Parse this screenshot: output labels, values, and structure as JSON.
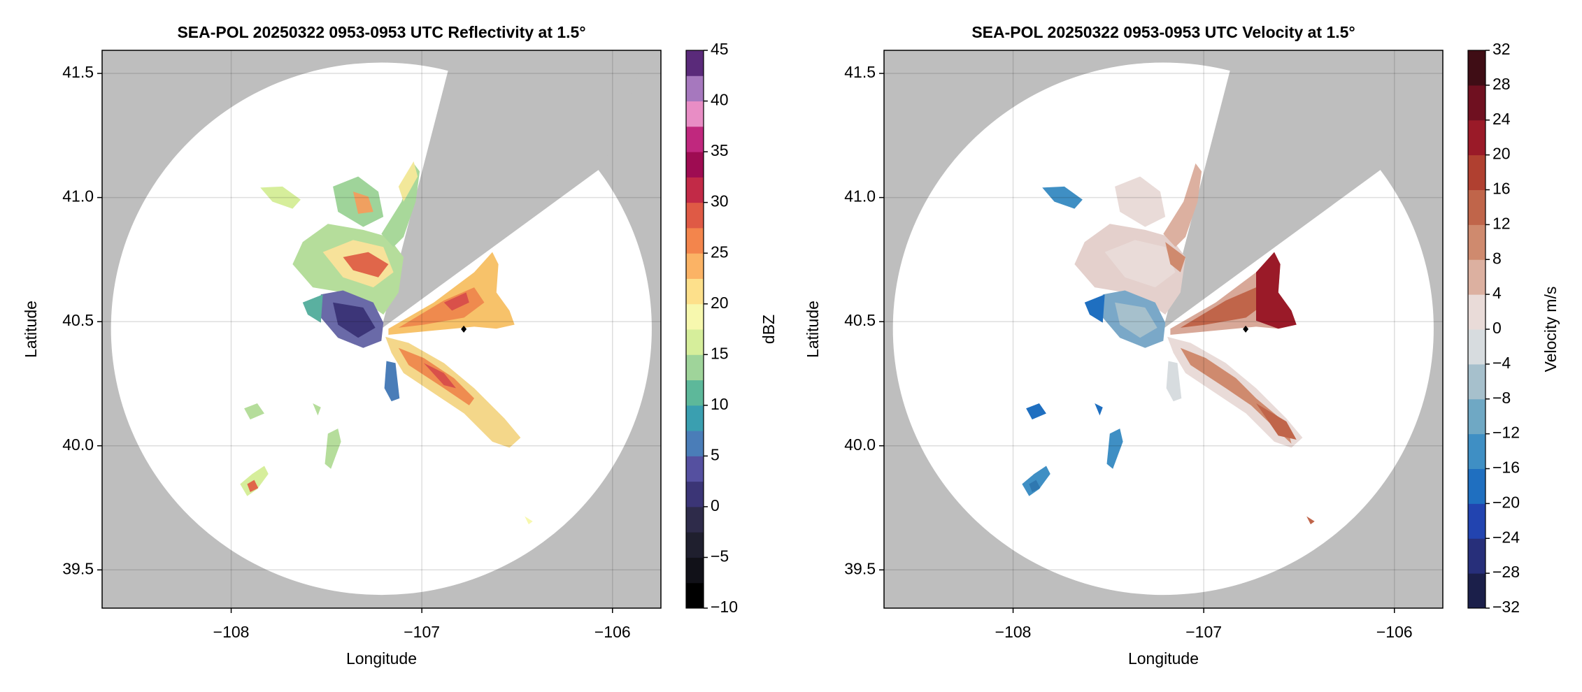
{
  "chart_data": [
    {
      "type": "radar-ppi",
      "title": "SEA-POL 20250322 0953-0953 UTC Reflectivity at 1.5°",
      "xlabel": "Longitude",
      "ylabel": "Latitude",
      "xlim": [
        -108.677,
        -105.746
      ],
      "ylim": [
        39.346,
        41.593
      ],
      "xticks": [
        {
          "value": -108,
          "label": "−108"
        },
        {
          "value": -107,
          "label": "−107"
        },
        {
          "value": -106,
          "label": "−106"
        }
      ],
      "yticks": [
        39.5,
        {
          "value": 40.0,
          "label": "40.0"
        },
        40.5,
        {
          "value": 41.0,
          "label": "41.0"
        },
        41.5
      ],
      "grid": true,
      "site": {
        "x": -106.78,
        "y": 40.47,
        "color": "#000000"
      },
      "colorbar": {
        "label": "dBZ",
        "lim": [
          -10,
          45
        ],
        "ticks": [
          {
            "value": -10,
            "label": "−10"
          },
          {
            "value": -5,
            "label": "−5"
          },
          0,
          5,
          10,
          15,
          20,
          25,
          30,
          35,
          40,
          45
        ],
        "colors": [
          "#000000",
          "#111118",
          "#1f1f2e",
          "#2e2b4a",
          "#3b3576",
          "#5550a0",
          "#4a7db8",
          "#3a9fb0",
          "#5db89a",
          "#9fd49a",
          "#d6ee9b",
          "#f7f8ae",
          "#fde08b",
          "#fbb365",
          "#f3854c",
          "#df5a45",
          "#c22a47",
          "#9e0c52",
          "#c0287e",
          "#e88dc5",
          "#a678be",
          "#5a2a7a"
        ]
      }
    },
    {
      "type": "radar-ppi",
      "title": "SEA-POL 20250322 0953-0953 UTC Velocity at 1.5°",
      "xlabel": "Longitude",
      "ylabel": "Latitude",
      "xlim": [
        -108.677,
        -105.746
      ],
      "ylim": [
        39.346,
        41.593
      ],
      "xticks": [
        {
          "value": -108,
          "label": "−108"
        },
        {
          "value": -107,
          "label": "−107"
        },
        {
          "value": -106,
          "label": "−106"
        }
      ],
      "yticks": [
        39.5,
        {
          "value": 40.0,
          "label": "40.0"
        },
        40.5,
        {
          "value": 41.0,
          "label": "41.0"
        },
        41.5
      ],
      "grid": true,
      "site": {
        "x": -106.78,
        "y": 40.47,
        "color": "#000000"
      },
      "colorbar": {
        "label": "Velocity m/s",
        "lim": [
          -32,
          32
        ],
        "ticks": [
          {
            "value": -32,
            "label": "−32"
          },
          {
            "value": -28,
            "label": "−28"
          },
          {
            "value": -24,
            "label": "−24"
          },
          {
            "value": -20,
            "label": "−20"
          },
          {
            "value": -16,
            "label": "−16"
          },
          {
            "value": -12,
            "label": "−12"
          },
          {
            "value": -8,
            "label": "−8"
          },
          {
            "value": -4,
            "label": "−4"
          },
          0,
          4,
          8,
          12,
          16,
          20,
          24,
          28,
          32
        ],
        "colors": [
          "#1b1f4a",
          "#272f7a",
          "#2244b0",
          "#1f6fc0",
          "#3f8fc4",
          "#6fa8c4",
          "#a6c0cc",
          "#d7dcdf",
          "#e9dbd8",
          "#dcb0a0",
          "#cf8a6e",
          "#c0654a",
          "#b04030",
          "#9a1a28",
          "#6f1020",
          "#3f0d15"
        ]
      }
    }
  ]
}
